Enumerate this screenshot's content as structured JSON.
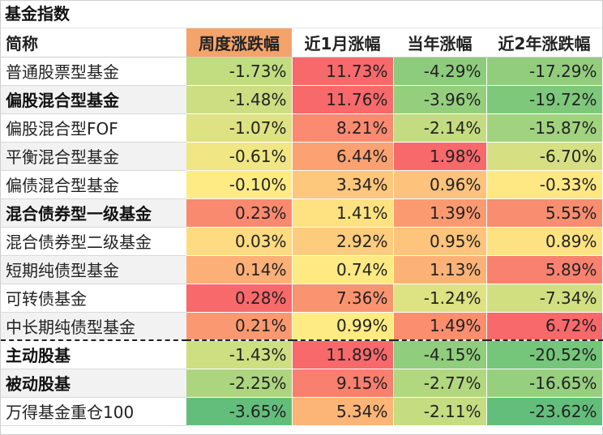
{
  "title": "基金指数",
  "headers": [
    "简称",
    "周度涨跌幅",
    "近1月涨幅",
    "当年涨幅",
    "近2年涨跌幅"
  ],
  "rows": [
    {
      "name": "普通股票型基金",
      "bold": false,
      "values": [
        "-1.73%",
        "11.73%",
        "-4.29%",
        "-17.29%"
      ],
      "colors": [
        "#c2dc80",
        "#f8696b",
        "#8dcc7c",
        "#92cd7e"
      ]
    },
    {
      "name": "偏股混合型基金",
      "bold": true,
      "values": [
        "-1.48%",
        "11.76%",
        "-3.96%",
        "-19.72%"
      ],
      "colors": [
        "#ccdd82",
        "#f8696b",
        "#95cf7e",
        "#7ec87c"
      ]
    },
    {
      "name": "偏股混合型FOF",
      "bold": false,
      "values": [
        "-1.07%",
        "8.21%",
        "-2.14%",
        "-15.87%"
      ],
      "colors": [
        "#dde282",
        "#fa8a70",
        "#c4dc81",
        "#a1d27f"
      ]
    },
    {
      "name": "平衡混合型基金",
      "bold": false,
      "values": [
        "-0.61%",
        "6.44%",
        "1.98%",
        "-6.70%"
      ],
      "colors": [
        "#f0e784",
        "#fba172",
        "#f8696b",
        "#d6e082"
      ]
    },
    {
      "name": "偏债混合型基金",
      "bold": false,
      "values": [
        "-0.10%",
        "3.34%",
        "0.96%",
        "-0.33%"
      ],
      "colors": [
        "#ffeb84",
        "#fdc77c",
        "#fdc27b",
        "#fde883"
      ]
    },
    {
      "name": "混合债券型一级基金",
      "bold": true,
      "values": [
        "0.23%",
        "1.41%",
        "1.39%",
        "5.55%"
      ],
      "colors": [
        "#f98a70",
        "#fee181",
        "#fb9a71",
        "#f88d70"
      ]
    },
    {
      "name": "混合债券型二级基金",
      "bold": false,
      "values": [
        "0.03%",
        "2.92%",
        "0.95%",
        "0.89%"
      ],
      "colors": [
        "#fedb80",
        "#fdcc7d",
        "#fdc47b",
        "#fde282"
      ]
    },
    {
      "name": "短期纯债型基金",
      "bold": false,
      "values": [
        "0.14%",
        "0.74%",
        "1.13%",
        "5.89%"
      ],
      "colors": [
        "#fcb077",
        "#ffe983",
        "#fcb277",
        "#f8826f"
      ]
    },
    {
      "name": "可转债基金",
      "bold": false,
      "values": [
        "0.28%",
        "7.36%",
        "-1.24%",
        "-7.34%"
      ],
      "colors": [
        "#f8696b",
        "#fa9470",
        "#dde282",
        "#d1df81"
      ]
    },
    {
      "name": "中长期纯债型基金",
      "bold": false,
      "values": [
        "0.21%",
        "0.99%",
        "1.49%",
        "6.72%"
      ],
      "colors": [
        "#fa9971",
        "#ffeb84",
        "#fa8e6f",
        "#f8696b"
      ]
    },
    {
      "name": "主动股基",
      "bold": true,
      "values": [
        "-1.43%",
        "11.89%",
        "-4.15%",
        "-20.52%"
      ],
      "colors": [
        "#cedf82",
        "#f8696b",
        "#90cd7d",
        "#75c67b"
      ]
    },
    {
      "name": "被动股基",
      "bold": true,
      "values": [
        "-2.25%",
        "9.15%",
        "-2.77%",
        "-16.65%"
      ],
      "colors": [
        "#acd57f",
        "#f97f6e",
        "#b1d77f",
        "#96cf7e"
      ]
    },
    {
      "name": "万得基金重仓100",
      "bold": false,
      "values": [
        "-3.65%",
        "5.34%",
        "-2.11%",
        "-23.62%"
      ],
      "colors": [
        "#63be7b",
        "#fcb477",
        "#c5dc81",
        "#63be7b"
      ]
    }
  ]
}
